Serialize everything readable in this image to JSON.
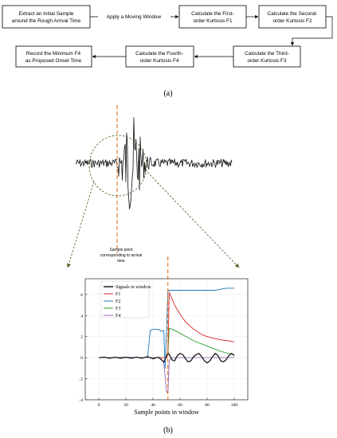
{
  "flowchart": {
    "boxes": [
      {
        "id": "b1",
        "lines": [
          "Extract an Initial Sample",
          "around the Rough Arrival Time"
        ]
      },
      {
        "id": "b2",
        "lines": [
          "Calculate the First-",
          "order Kurtosis F1"
        ]
      },
      {
        "id": "b3",
        "lines": [
          "Calculate the Second-",
          "order Kurtosis F2"
        ]
      },
      {
        "id": "b4",
        "lines": [
          "Calculate the Third-",
          "order Kurtosis F3"
        ]
      },
      {
        "id": "b5",
        "lines": [
          "Calculate the Fourth-",
          "order Kurtosis F4"
        ]
      },
      {
        "id": "b6",
        "lines": [
          "Record the Minimum F4",
          "as Proposed Onset Time"
        ]
      }
    ],
    "edge_label": "Apply a Moving Window"
  },
  "captions": {
    "a": "(a)",
    "b": "(b)"
  },
  "annotation": {
    "lines": [
      "Sample point",
      "corresponding to arrival",
      "time"
    ]
  },
  "colors": {
    "signal": "#1a1a1a",
    "F1": "#d62728",
    "F2": "#1f77b4",
    "F3": "#2ca02c",
    "F4": "#9467bd",
    "marker": "#e07020",
    "zoom": "#556b2f"
  },
  "chart_data": {
    "type": "line",
    "xlabel": "Sample points in window",
    "ylabel": "",
    "xlim": [
      -10,
      110
    ],
    "ylim": [
      -4,
      7.5
    ],
    "xticks": [
      0,
      20,
      40,
      60,
      80,
      100
    ],
    "yticks": [
      -4,
      -2,
      0,
      2,
      4,
      6
    ],
    "grid": true,
    "legend": "top-left",
    "arrival_x": 51,
    "series": [
      {
        "name": "Signals in window",
        "key": "signal",
        "x": [
          0,
          4,
          8,
          12,
          16,
          20,
          24,
          28,
          32,
          36,
          40,
          44,
          48,
          50,
          51,
          52,
          54,
          56,
          58,
          60,
          62,
          64,
          66,
          68,
          70,
          72,
          74,
          76,
          78,
          80,
          82,
          84,
          86,
          88,
          90,
          92,
          94,
          96,
          98,
          100
        ],
        "y": [
          0,
          0.05,
          -0.05,
          0.05,
          -0.05,
          0.05,
          -0.05,
          0.05,
          -0.05,
          0.1,
          -0.1,
          0.05,
          -0.4,
          0.1,
          0.5,
          0.3,
          -0.2,
          -0.3,
          0.2,
          0.4,
          0.3,
          -0.1,
          -0.4,
          -0.3,
          0.1,
          0.3,
          0.4,
          0.1,
          -0.3,
          -0.5,
          -0.3,
          0.1,
          0.4,
          0.2,
          -0.3,
          -0.4,
          -0.2,
          0.2,
          0.4,
          0.2
        ]
      },
      {
        "name": "F1",
        "key": "F1",
        "x": [
          0,
          10,
          20,
          30,
          36,
          40,
          44,
          48,
          50,
          51,
          52,
          54,
          56,
          60,
          64,
          70,
          76,
          80,
          86,
          90,
          96,
          100
        ],
        "y": [
          0,
          0,
          0,
          0,
          0,
          0,
          0,
          0,
          0,
          0.3,
          6.2,
          5.6,
          5.0,
          4.1,
          3.4,
          2.7,
          2.2,
          2.0,
          1.8,
          1.7,
          1.6,
          1.5
        ]
      },
      {
        "name": "F2",
        "key": "F2",
        "x": [
          0,
          10,
          20,
          30,
          36,
          38,
          40,
          44,
          46,
          48,
          49,
          50,
          51,
          52,
          56,
          70,
          86,
          90,
          94,
          100
        ],
        "y": [
          0,
          0,
          0,
          0,
          0,
          2.6,
          2.7,
          2.7,
          2.5,
          2.6,
          -1.0,
          2.5,
          6.3,
          6.4,
          6.4,
          6.4,
          6.4,
          6.5,
          6.6,
          6.6
        ]
      },
      {
        "name": "F3",
        "key": "F3",
        "x": [
          0,
          10,
          20,
          30,
          40,
          44,
          48,
          50,
          51,
          52,
          56,
          60,
          66,
          70,
          76,
          80,
          86,
          90,
          96,
          100
        ],
        "y": [
          0,
          0,
          0,
          0,
          0,
          0,
          0,
          0,
          0.3,
          2.8,
          2.6,
          2.3,
          1.9,
          1.6,
          1.3,
          1.1,
          0.8,
          0.6,
          0.4,
          0.3
        ]
      },
      {
        "name": "F4",
        "key": "F4",
        "x": [
          0,
          10,
          20,
          30,
          40,
          44,
          46,
          48,
          49,
          50,
          51,
          52,
          54,
          58,
          64,
          70,
          80,
          90,
          100
        ],
        "y": [
          0,
          0,
          0.05,
          0,
          0,
          0,
          -0.1,
          -0.5,
          -1.8,
          -3.2,
          -3.4,
          -0.3,
          0,
          0,
          0,
          0,
          0,
          0,
          0
        ]
      }
    ]
  }
}
